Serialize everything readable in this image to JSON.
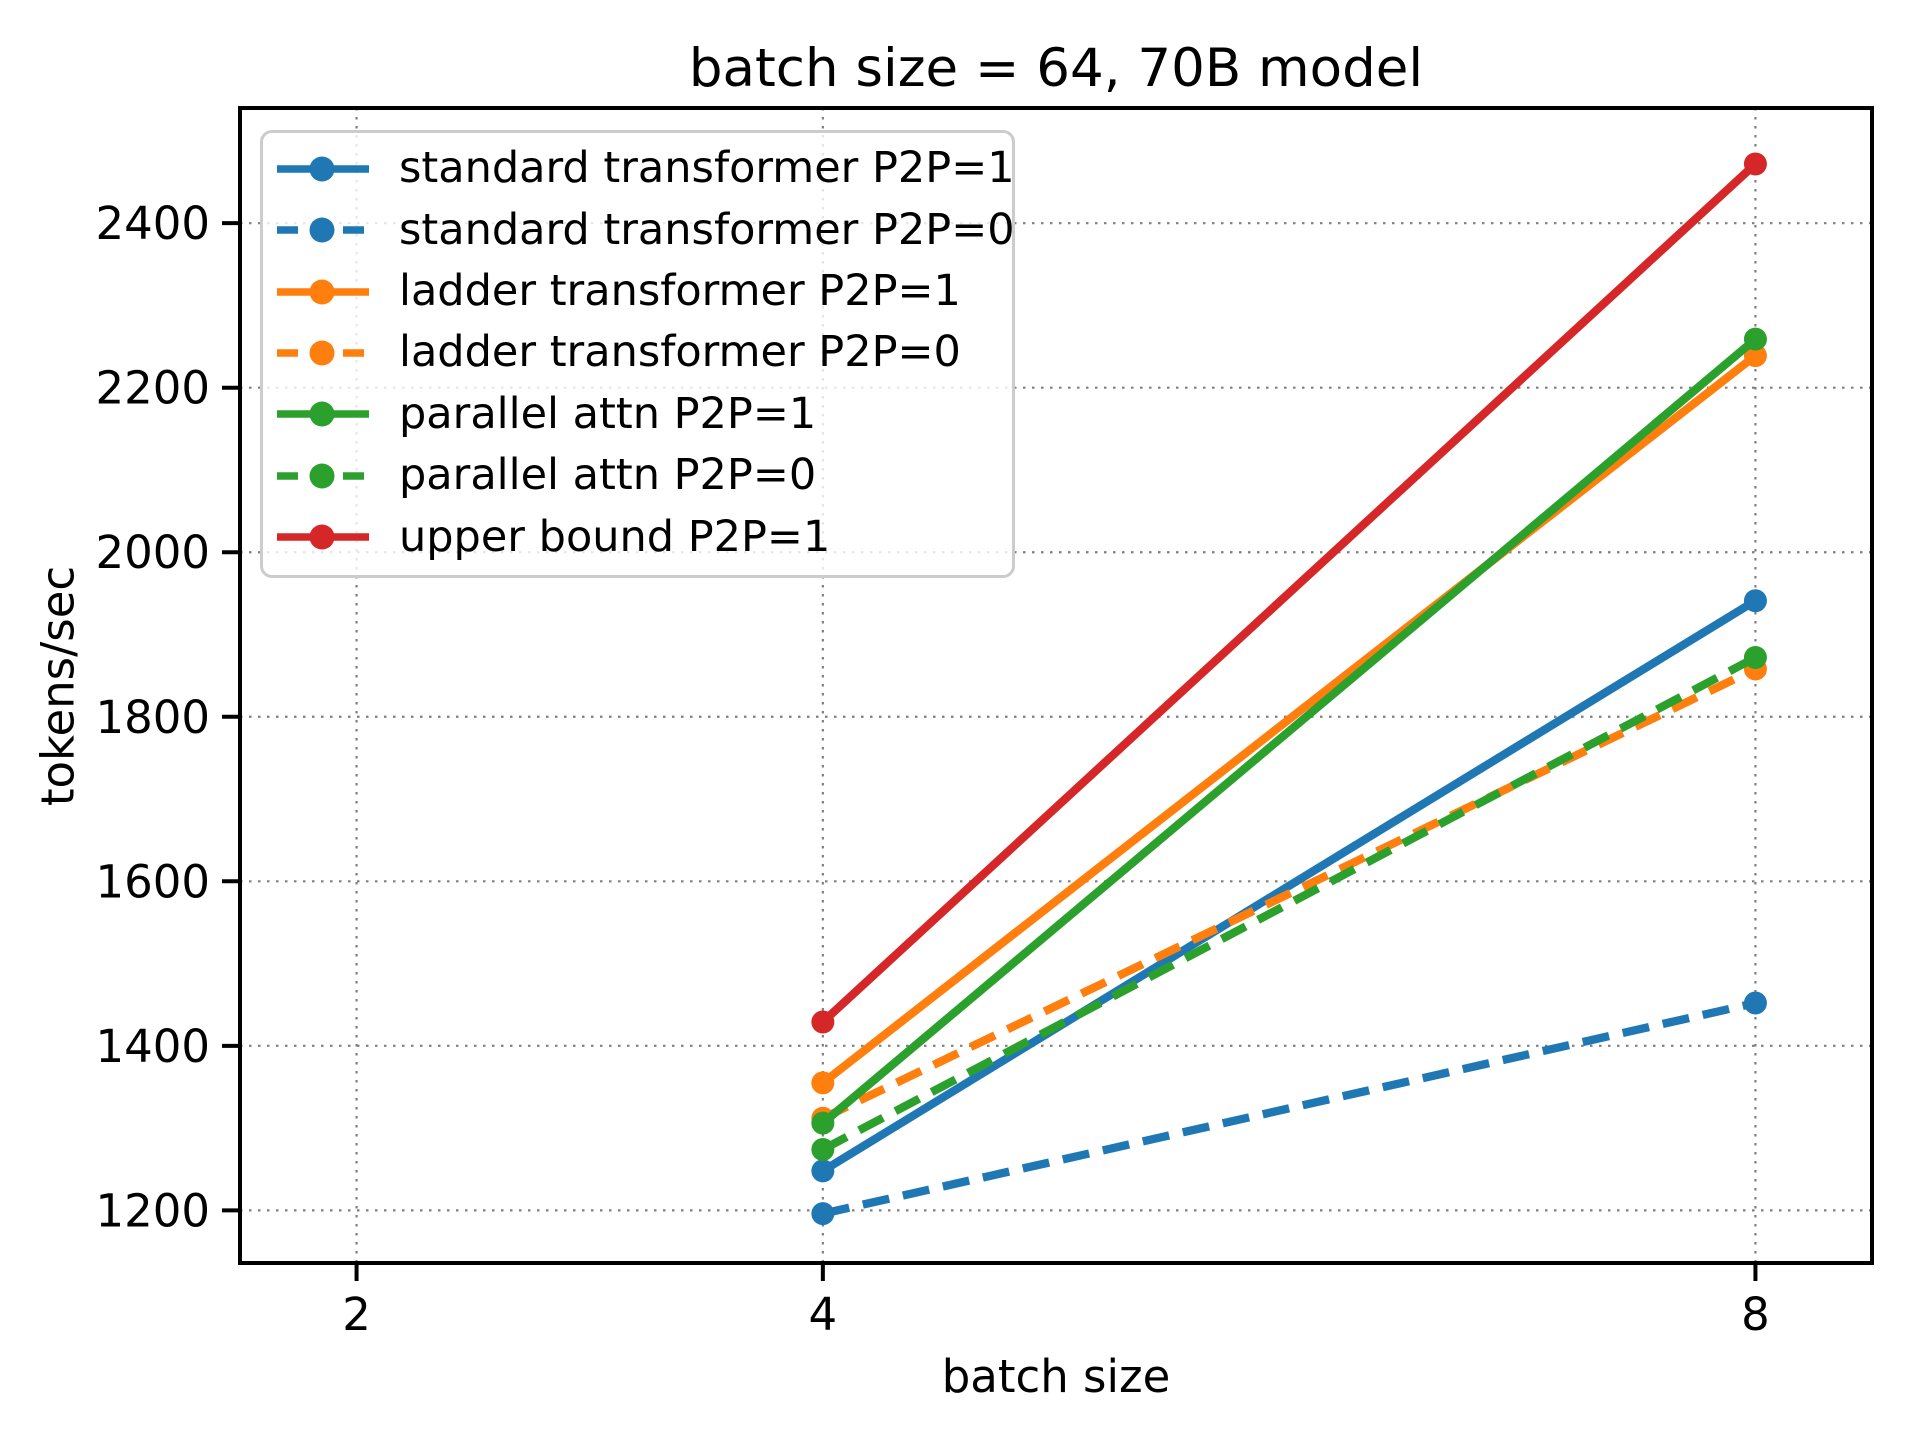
{
  "chart_data": {
    "type": "line",
    "title": "batch size = 64, 70B model",
    "xlabel": "batch size",
    "ylabel": "tokens/sec",
    "x": [
      4,
      8
    ],
    "xticks": [
      2,
      4,
      8
    ],
    "yticks": [
      1200,
      1400,
      1600,
      1800,
      2000,
      2200,
      2400
    ],
    "xlim": [
      1.5,
      8.5
    ],
    "ylim": [
      1136,
      2540
    ],
    "grid": true,
    "legend_position": "upper left",
    "series": [
      {
        "name": "standard transformer P2P=1",
        "color": "#1f77b4",
        "line_style": "solid",
        "values": [
          1248,
          1941
        ]
      },
      {
        "name": "standard transformer P2P=0",
        "color": "#1f77b4",
        "line_style": "dashed",
        "values": [
          1196,
          1452
        ]
      },
      {
        "name": "ladder transformer P2P=1",
        "color": "#ff7f0e",
        "line_style": "solid",
        "values": [
          1355,
          2239
        ]
      },
      {
        "name": "ladder transformer P2P=0",
        "color": "#ff7f0e",
        "line_style": "dashed",
        "values": [
          1312,
          1858
        ]
      },
      {
        "name": "parallel attn P2P=1",
        "color": "#2ca02c",
        "line_style": "solid",
        "values": [
          1306,
          2259
        ]
      },
      {
        "name": "parallel attn P2P=0",
        "color": "#2ca02c",
        "line_style": "dashed",
        "values": [
          1274,
          1872
        ]
      },
      {
        "name": "upper bound P2P=1",
        "color": "#d62728",
        "line_style": "solid",
        "values": [
          1429,
          2472
        ]
      }
    ],
    "styles": {
      "grid_color": "#7f7f7f",
      "spine_color": "#000000",
      "tick_color": "#000000",
      "legend_border_color": "#cccccc"
    }
  }
}
